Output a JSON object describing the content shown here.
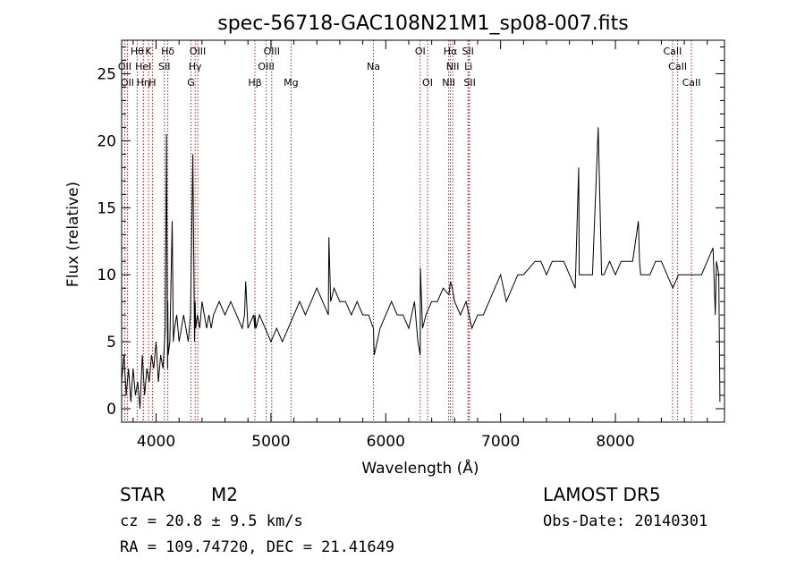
{
  "chart_data": {
    "type": "line",
    "title": "spec-56718-GAC108N21M1_sp08-007.fits",
    "xlabel": "Wavelength (Å)",
    "ylabel": "Flux (relative)",
    "xlim": [
      3700,
      8950
    ],
    "ylim": [
      -1,
      27.5
    ],
    "x_ticks": [
      4000,
      5000,
      6000,
      7000,
      8000
    ],
    "y_ticks": [
      0,
      5,
      10,
      15,
      20,
      25
    ],
    "x_tick_labels": [
      "4000",
      "5000",
      "6000",
      "7000",
      "8000"
    ],
    "y_tick_labels": [
      "0",
      "5",
      "10",
      "15",
      "20",
      "25"
    ],
    "grid": false,
    "series": [
      {
        "x": [
          3700,
          3720,
          3740,
          3760,
          3780,
          3800,
          3820,
          3840,
          3860,
          3880,
          3900,
          3920,
          3940,
          3960,
          3980,
          4000,
          4020,
          4040,
          4060,
          4080,
          4090,
          4100,
          4102,
          4105,
          4120,
          4140,
          4150,
          4160,
          4180,
          4200,
          4220,
          4240,
          4260,
          4280,
          4300,
          4320,
          4335,
          4340,
          4345,
          4360,
          4380,
          4400,
          4420,
          4440,
          4460,
          4480,
          4500,
          4550,
          4600,
          4650,
          4700,
          4750,
          4770,
          4780,
          4800,
          4850,
          4860,
          4862,
          4870,
          4900,
          4950,
          5000,
          5050,
          5100,
          5150,
          5200,
          5250,
          5300,
          5350,
          5400,
          5450,
          5500,
          5505,
          5520,
          5550,
          5600,
          5650,
          5700,
          5750,
          5800,
          5850,
          5893,
          5900,
          5950,
          6000,
          6050,
          6100,
          6150,
          6200,
          6250,
          6280,
          6300,
          6302,
          6320,
          6350,
          6400,
          6450,
          6500,
          6550,
          6563,
          6580,
          6600,
          6650,
          6700,
          6750,
          6800,
          6850,
          6900,
          6950,
          7000,
          7050,
          7100,
          7150,
          7200,
          7250,
          7300,
          7350,
          7400,
          7450,
          7500,
          7550,
          7600,
          7650,
          7680,
          7685,
          7700,
          7750,
          7800,
          7850,
          7880,
          7885,
          7900,
          7950,
          8000,
          8050,
          8100,
          8150,
          8200,
          8210,
          8220,
          8250,
          8300,
          8350,
          8400,
          8450,
          8500,
          8550,
          8600,
          8650,
          8700,
          8750,
          8800,
          8850,
          8870,
          8880,
          8900,
          8910
        ],
        "y": [
          2,
          4,
          1,
          3,
          0.5,
          3,
          1,
          2,
          0,
          4,
          1,
          3,
          2,
          4,
          3,
          5,
          2,
          4,
          3,
          6,
          20.5,
          3,
          8,
          4,
          5,
          14,
          5,
          6,
          7,
          5,
          6,
          7,
          6,
          5,
          7,
          19,
          5,
          8,
          6,
          7,
          6,
          8,
          7,
          6,
          7,
          6,
          7,
          8,
          7,
          8,
          7,
          6,
          7,
          9.5,
          6,
          7,
          6,
          7,
          6,
          7,
          6,
          5,
          6,
          5,
          6,
          7,
          8,
          7,
          8,
          9,
          8,
          7,
          12.8,
          8,
          9,
          8,
          8,
          7,
          8,
          7,
          7,
          6,
          4,
          6,
          7,
          8,
          7,
          7,
          6,
          8,
          5,
          4,
          10.5,
          6,
          7,
          8,
          8,
          9,
          8.5,
          9.5,
          9,
          8,
          7,
          8,
          6,
          7,
          7,
          8,
          9,
          10,
          8,
          9,
          10,
          10,
          10.5,
          11,
          11,
          10,
          11,
          11,
          11,
          10,
          9,
          18,
          10,
          10,
          10,
          10,
          21,
          10,
          10,
          10,
          11,
          10,
          11,
          11,
          11,
          14,
          11,
          10,
          10,
          10,
          11,
          11,
          10,
          9,
          10,
          10,
          10,
          10,
          10,
          11,
          12,
          7,
          11,
          10,
          0.5
        ]
      }
    ],
    "annotations": {
      "lines": [
        {
          "x": 3727,
          "label": "OII",
          "row": 2
        },
        {
          "x": 3750,
          "label": "OII",
          "row": 3
        },
        {
          "x": 3835,
          "label": "Hθ",
          "row": 1
        },
        {
          "x": 3889,
          "label": "Hη",
          "row": 3
        },
        {
          "x": 3889,
          "label": "HeI",
          "row": 2
        },
        {
          "x": 3934,
          "label": "K",
          "row": 1
        },
        {
          "x": 3968,
          "label": "H",
          "row": 3
        },
        {
          "x": 4072,
          "label": "SII",
          "row": 2
        },
        {
          "x": 4102,
          "label": "Hδ",
          "row": 1
        },
        {
          "x": 4304,
          "label": "G",
          "row": 3
        },
        {
          "x": 4340,
          "label": "Hγ",
          "row": 2
        },
        {
          "x": 4363,
          "label": "OIII",
          "row": 1
        },
        {
          "x": 4861,
          "label": "Hβ",
          "row": 3
        },
        {
          "x": 4959,
          "label": "OIII",
          "row": 2
        },
        {
          "x": 5007,
          "label": "OIII",
          "row": 1
        },
        {
          "x": 5175,
          "label": "Mg",
          "row": 3
        },
        {
          "x": 5893,
          "label": "Na",
          "row": 2
        },
        {
          "x": 6300,
          "label": "OI",
          "row": 1
        },
        {
          "x": 6364,
          "label": "OI",
          "row": 3
        },
        {
          "x": 6548,
          "label": "NII",
          "row": 3
        },
        {
          "x": 6563,
          "label": "Hα",
          "row": 1
        },
        {
          "x": 6583,
          "label": "NII",
          "row": 2
        },
        {
          "x": 6716,
          "label": "SII",
          "row": 1
        },
        {
          "x": 6720,
          "label": "Li",
          "row": 2
        },
        {
          "x": 6731,
          "label": "SII",
          "row": 3
        },
        {
          "x": 8498,
          "label": "CaII",
          "row": 1
        },
        {
          "x": 8542,
          "label": "CaII",
          "row": 2
        },
        {
          "x": 8662,
          "label": "CaII",
          "row": 3
        }
      ]
    }
  },
  "info": {
    "object_class": "STAR",
    "subclass": "M2",
    "survey": "LAMOST DR5",
    "cz": "cz = 20.8 ± 9.5 km/s",
    "obs_date": "Obs-Date: 20140301",
    "radec": "RA = 109.74720, DEC =  21.41649"
  },
  "colors": {
    "axes": "#000000",
    "spectrum": "#000000",
    "line_markers": "#b22222"
  }
}
